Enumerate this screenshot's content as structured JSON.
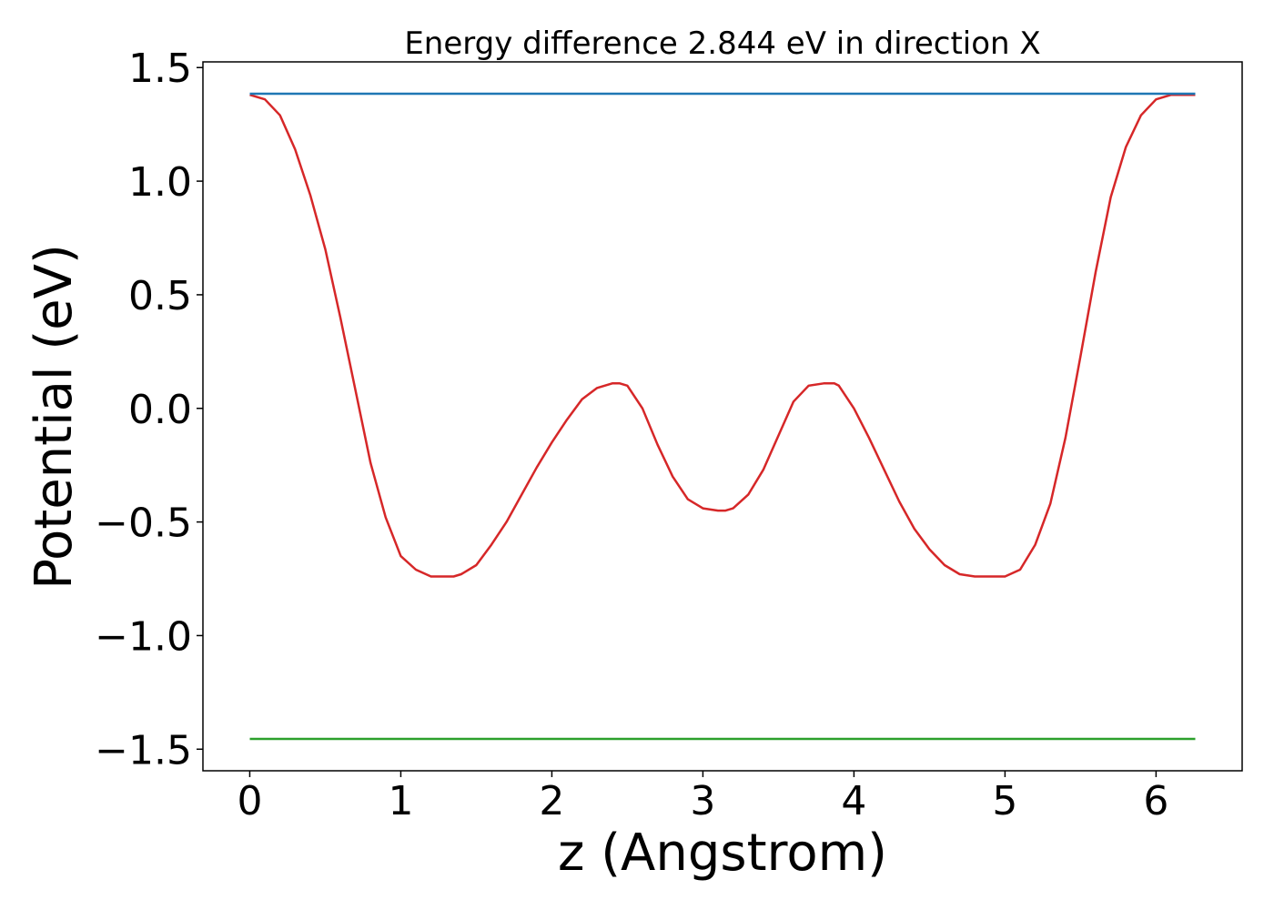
{
  "chart_data": {
    "type": "line",
    "title": "Energy difference 2.844 eV in direction X",
    "xlabel": "z (Angstrom)",
    "ylabel": "Potential (eV)",
    "xlim": [
      -0.31,
      6.57
    ],
    "ylim": [
      -1.595,
      1.525
    ],
    "xticks": [
      0,
      1,
      2,
      3,
      4,
      5,
      6
    ],
    "xtick_labels": [
      "0",
      "1",
      "2",
      "3",
      "4",
      "5",
      "6"
    ],
    "yticks": [
      1.5,
      1.0,
      0.5,
      0.0,
      -0.5,
      -1.0,
      -1.5
    ],
    "ytick_labels": [
      "1.5",
      "1.0",
      "0.5",
      "0.0",
      "−0.5",
      "−1.0",
      "−1.5"
    ],
    "grid": false,
    "legend": "none",
    "series": [
      {
        "color": "#d62728",
        "x": [
          0.0,
          0.1,
          0.2,
          0.3,
          0.4,
          0.5,
          0.6,
          0.7,
          0.8,
          0.9,
          1.0,
          1.1,
          1.2,
          1.3,
          1.35,
          1.4,
          1.5,
          1.6,
          1.7,
          1.8,
          1.9,
          2.0,
          2.1,
          2.2,
          2.3,
          2.4,
          2.45,
          2.5,
          2.6,
          2.7,
          2.8,
          2.9,
          3.0,
          3.1,
          3.15,
          3.2,
          3.3,
          3.4,
          3.5,
          3.6,
          3.7,
          3.8,
          3.87,
          3.9,
          4.0,
          4.1,
          4.2,
          4.3,
          4.4,
          4.5,
          4.6,
          4.7,
          4.8,
          4.9,
          4.97,
          5.0,
          5.1,
          5.2,
          5.3,
          5.4,
          5.5,
          5.6,
          5.7,
          5.8,
          5.9,
          6.0,
          6.1,
          6.2,
          6.26
        ],
        "y": [
          1.38,
          1.36,
          1.29,
          1.14,
          0.94,
          0.7,
          0.4,
          0.08,
          -0.24,
          -0.48,
          -0.65,
          -0.71,
          -0.74,
          -0.74,
          -0.74,
          -0.73,
          -0.69,
          -0.6,
          -0.5,
          -0.38,
          -0.26,
          -0.15,
          -0.05,
          0.04,
          0.09,
          0.11,
          0.11,
          0.1,
          0.0,
          -0.16,
          -0.3,
          -0.4,
          -0.44,
          -0.45,
          -0.45,
          -0.44,
          -0.38,
          -0.27,
          -0.12,
          0.03,
          0.1,
          0.11,
          0.11,
          0.1,
          0.0,
          -0.13,
          -0.27,
          -0.41,
          -0.53,
          -0.62,
          -0.69,
          -0.73,
          -0.74,
          -0.74,
          -0.74,
          -0.74,
          -0.71,
          -0.6,
          -0.42,
          -0.13,
          0.23,
          0.6,
          0.93,
          1.15,
          1.29,
          1.36,
          1.38,
          1.38,
          1.38
        ]
      },
      {
        "color": "#1f77b4",
        "x": [
          0.0,
          6.26
        ],
        "y": [
          1.385,
          1.385
        ]
      },
      {
        "color": "#2ca02c",
        "x": [
          0.0,
          6.26
        ],
        "y": [
          -1.455,
          -1.455
        ]
      }
    ]
  }
}
